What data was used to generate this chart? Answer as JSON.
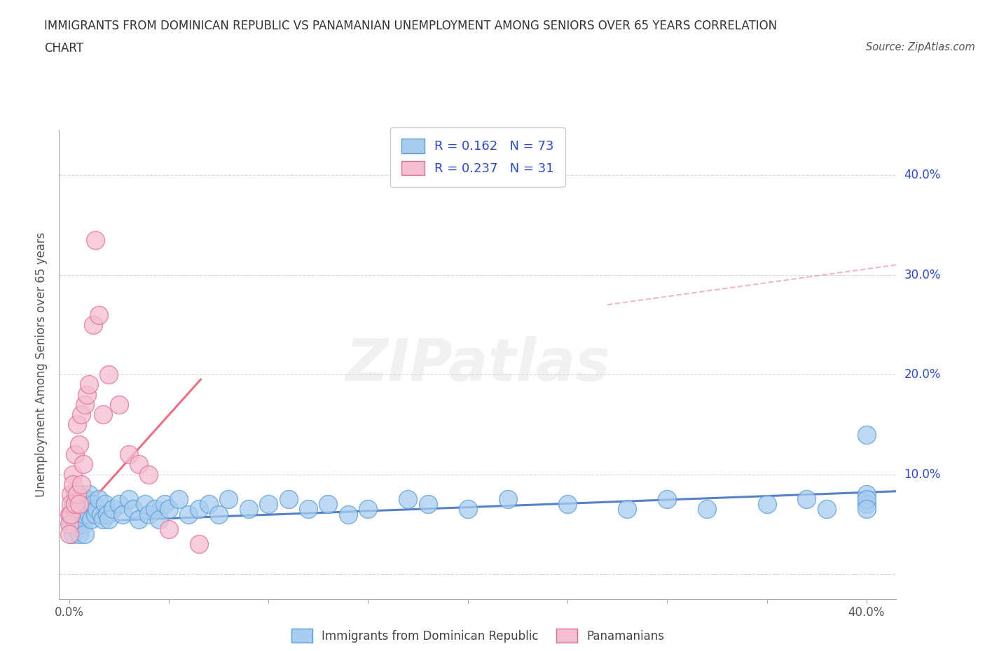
{
  "title_line1": "IMMIGRANTS FROM DOMINICAN REPUBLIC VS PANAMANIAN UNEMPLOYMENT AMONG SENIORS OVER 65 YEARS CORRELATION",
  "title_line2": "CHART",
  "source_text": "Source: ZipAtlas.com",
  "ylabel": "Unemployment Among Seniors over 65 years",
  "xlim": [
    -0.005,
    0.415
  ],
  "ylim": [
    -0.025,
    0.445
  ],
  "legend_R1": "R = 0.162",
  "legend_N1": "N = 73",
  "legend_R2": "R = 0.237",
  "legend_N2": "N = 31",
  "blue_face_color": "#A8CDEF",
  "pink_face_color": "#F5BDD0",
  "blue_edge_color": "#5B9BD5",
  "pink_edge_color": "#E07090",
  "blue_line_color": "#4472C4",
  "pink_line_color": "#E8607A",
  "text_color": "#2E4BC6",
  "background_color": "#FFFFFF",
  "watermark_text": "ZIPatlas",
  "blue_trend_x0": 0.0,
  "blue_trend_x1": 0.415,
  "blue_trend_y0": 0.052,
  "blue_trend_y1": 0.083,
  "pink_trend_x0": 0.0,
  "pink_trend_x1": 0.066,
  "pink_trend_y0": 0.048,
  "pink_trend_y1": 0.195,
  "blue_scatter_x": [
    0.001,
    0.001,
    0.002,
    0.002,
    0.003,
    0.003,
    0.003,
    0.004,
    0.004,
    0.005,
    0.005,
    0.005,
    0.006,
    0.006,
    0.007,
    0.007,
    0.008,
    0.008,
    0.009,
    0.009,
    0.01,
    0.01,
    0.011,
    0.012,
    0.013,
    0.014,
    0.015,
    0.016,
    0.017,
    0.018,
    0.019,
    0.02,
    0.022,
    0.025,
    0.027,
    0.03,
    0.032,
    0.035,
    0.038,
    0.04,
    0.043,
    0.045,
    0.048,
    0.05,
    0.055,
    0.06,
    0.065,
    0.07,
    0.075,
    0.08,
    0.09,
    0.1,
    0.11,
    0.12,
    0.13,
    0.14,
    0.15,
    0.17,
    0.18,
    0.2,
    0.22,
    0.25,
    0.28,
    0.3,
    0.32,
    0.35,
    0.37,
    0.38,
    0.4,
    0.4,
    0.4,
    0.4,
    0.4
  ],
  "blue_scatter_y": [
    0.06,
    0.05,
    0.07,
    0.04,
    0.065,
    0.05,
    0.08,
    0.06,
    0.07,
    0.055,
    0.07,
    0.04,
    0.065,
    0.08,
    0.05,
    0.075,
    0.06,
    0.04,
    0.065,
    0.075,
    0.06,
    0.08,
    0.055,
    0.07,
    0.06,
    0.065,
    0.075,
    0.06,
    0.055,
    0.07,
    0.06,
    0.055,
    0.065,
    0.07,
    0.06,
    0.075,
    0.065,
    0.055,
    0.07,
    0.06,
    0.065,
    0.055,
    0.07,
    0.065,
    0.075,
    0.06,
    0.065,
    0.07,
    0.06,
    0.075,
    0.065,
    0.07,
    0.075,
    0.065,
    0.07,
    0.06,
    0.065,
    0.075,
    0.07,
    0.065,
    0.075,
    0.07,
    0.065,
    0.075,
    0.065,
    0.07,
    0.075,
    0.065,
    0.14,
    0.08,
    0.07,
    0.075,
    0.065
  ],
  "pink_scatter_x": [
    0.0,
    0.0,
    0.0,
    0.001,
    0.001,
    0.001,
    0.002,
    0.002,
    0.003,
    0.003,
    0.004,
    0.004,
    0.005,
    0.005,
    0.006,
    0.006,
    0.007,
    0.008,
    0.009,
    0.01,
    0.012,
    0.013,
    0.015,
    0.017,
    0.02,
    0.025,
    0.03,
    0.035,
    0.04,
    0.05,
    0.065
  ],
  "pink_scatter_y": [
    0.06,
    0.05,
    0.04,
    0.08,
    0.07,
    0.06,
    0.1,
    0.09,
    0.12,
    0.07,
    0.15,
    0.08,
    0.13,
    0.07,
    0.16,
    0.09,
    0.11,
    0.17,
    0.18,
    0.19,
    0.25,
    0.335,
    0.26,
    0.16,
    0.2,
    0.17,
    0.12,
    0.11,
    0.1,
    0.045,
    0.03
  ]
}
